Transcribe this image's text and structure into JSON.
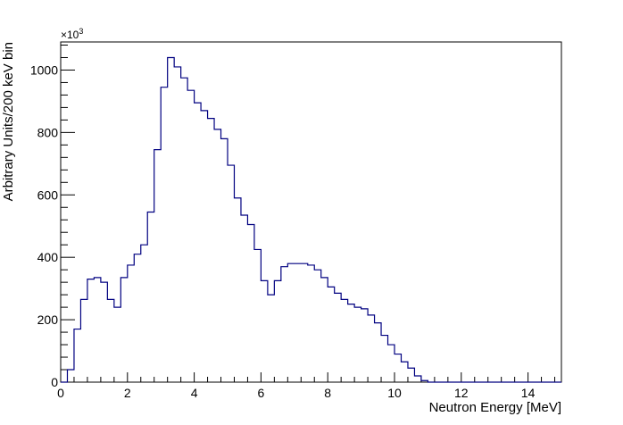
{
  "chart_data": {
    "type": "bar",
    "style": "step-histogram",
    "xlabel": "Neutron Energy [MeV]",
    "ylabel": "Arbitrary Units/200 keV bin",
    "y_multiplier_label": "×10",
    "y_multiplier_exp": "3",
    "xlim": [
      0,
      15
    ],
    "ylim": [
      0,
      1090
    ],
    "x_ticks": [
      0,
      2,
      4,
      6,
      8,
      10,
      12,
      14
    ],
    "x_tick_labels": [
      "0",
      "2",
      "4",
      "6",
      "8",
      "10",
      "12",
      "14"
    ],
    "y_ticks": [
      0,
      200,
      400,
      600,
      800,
      1000
    ],
    "y_tick_labels": [
      "0",
      "200",
      "400",
      "600",
      "800",
      "1000"
    ],
    "grid": false,
    "line_color": "#000080",
    "bin_width": 0.2,
    "bin_start": 0,
    "values": [
      0,
      40,
      170,
      265,
      330,
      335,
      320,
      265,
      240,
      335,
      375,
      410,
      440,
      545,
      745,
      945,
      1040,
      1010,
      975,
      935,
      895,
      870,
      845,
      810,
      780,
      695,
      590,
      535,
      505,
      425,
      325,
      280,
      325,
      370,
      380,
      380,
      380,
      375,
      360,
      335,
      305,
      285,
      265,
      250,
      240,
      235,
      215,
      190,
      150,
      120,
      90,
      65,
      45,
      20,
      5,
      0,
      0,
      0,
      0,
      0,
      0,
      0,
      0,
      0,
      0,
      0,
      0,
      0,
      0,
      0,
      0,
      0,
      0,
      0,
      0
    ]
  }
}
